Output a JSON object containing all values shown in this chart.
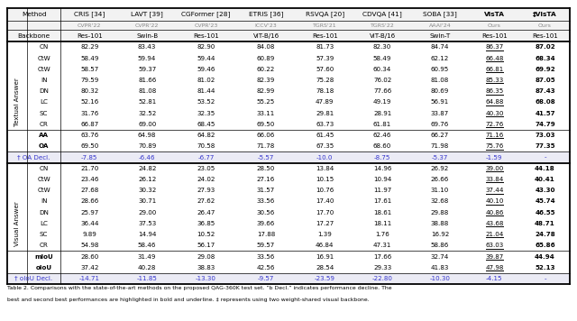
{
  "title": "Table 2. Comparisons with the state-of-the-art methods on the proposed QAG-360K test set. ”b Decl.” indicates performance decline. The best and second best performances are highlighted in bold and underline. ‡ represents using two weight-shared visual backbone.",
  "methods": [
    "CRIS [34]",
    "LAVT [39]",
    "CGFormer [28]",
    "ETRIS [36]",
    "RSVQA [20]",
    "CDVQA [41]",
    "SOBA [33]",
    "VisTA",
    "‡VisTA"
  ],
  "venues": [
    "CVPR'22",
    "CVPR'22",
    "CVPR'23",
    "ICCV'23",
    "TGRS'21",
    "TGRS'22",
    "AAAI'24",
    "Ours",
    "Ours"
  ],
  "backbones": [
    "Res-101",
    "Swin-B",
    "Res-101",
    "ViT-B/16",
    "Res-101",
    "ViT-B/16",
    "Swin-T",
    "Res-101",
    "Res-101"
  ],
  "textual_rows": [
    "CN",
    "CtW",
    "CtW",
    "IN",
    "DN",
    "LC",
    "SC",
    "CR"
  ],
  "textual_data": [
    [
      82.29,
      83.43,
      82.9,
      84.08,
      81.73,
      82.3,
      84.74,
      86.37,
      87.02
    ],
    [
      58.49,
      59.94,
      59.44,
      60.89,
      57.39,
      58.49,
      62.12,
      66.48,
      68.34
    ],
    [
      58.57,
      59.37,
      59.46,
      60.22,
      57.6,
      60.34,
      60.95,
      66.81,
      69.92
    ],
    [
      79.59,
      81.66,
      81.02,
      82.39,
      75.28,
      76.02,
      81.08,
      85.33,
      87.05
    ],
    [
      80.32,
      81.08,
      81.44,
      82.99,
      78.18,
      77.66,
      80.69,
      86.35,
      87.43
    ],
    [
      52.16,
      52.81,
      53.52,
      55.25,
      47.89,
      49.19,
      56.91,
      64.88,
      68.08
    ],
    [
      31.76,
      32.52,
      32.35,
      33.11,
      29.81,
      28.91,
      33.87,
      40.3,
      41.57
    ],
    [
      66.87,
      69.0,
      68.45,
      69.5,
      63.73,
      61.81,
      69.76,
      72.76,
      74.79
    ]
  ],
  "textual_summary_rows": [
    "AA",
    "OA"
  ],
  "textual_summary_data": [
    [
      63.76,
      64.98,
      64.82,
      66.06,
      61.45,
      62.46,
      66.27,
      71.16,
      73.03
    ],
    [
      69.5,
      70.89,
      70.58,
      71.78,
      67.35,
      68.6,
      71.98,
      75.76,
      77.35
    ]
  ],
  "oa_decl": [
    "-7.85",
    "-6.46",
    "-6.77",
    "-5.57",
    "-10.0",
    "-8.75",
    "-5.37",
    "-1.59",
    "-"
  ],
  "visual_rows": [
    "CN",
    "CtW",
    "CtW",
    "IN",
    "DN",
    "LC",
    "SC",
    "CR"
  ],
  "visual_data": [
    [
      21.7,
      24.82,
      23.05,
      28.5,
      13.84,
      14.96,
      26.92,
      39.0,
      44.18
    ],
    [
      23.46,
      26.12,
      24.02,
      27.16,
      10.15,
      10.94,
      26.66,
      33.84,
      40.41
    ],
    [
      27.68,
      30.32,
      27.93,
      31.57,
      10.76,
      11.97,
      31.1,
      37.44,
      43.3
    ],
    [
      28.66,
      30.71,
      27.62,
      33.56,
      17.4,
      17.61,
      32.68,
      40.1,
      45.74
    ],
    [
      25.97,
      29.0,
      26.47,
      30.56,
      17.7,
      18.61,
      29.88,
      40.86,
      46.55
    ],
    [
      36.44,
      37.53,
      36.85,
      39.66,
      17.27,
      18.11,
      38.88,
      43.68,
      48.71
    ],
    [
      9.89,
      14.94,
      10.52,
      17.88,
      1.39,
      1.76,
      16.92,
      21.04,
      24.78
    ],
    [
      54.98,
      58.46,
      56.17,
      59.57,
      46.84,
      47.31,
      58.86,
      63.03,
      65.86
    ]
  ],
  "visual_summary_rows": [
    "mIoU",
    "oIoU"
  ],
  "visual_summary_data": [
    [
      28.6,
      31.49,
      29.08,
      33.56,
      16.91,
      17.66,
      32.74,
      39.87,
      44.94
    ],
    [
      37.42,
      40.28,
      38.83,
      42.56,
      28.54,
      29.33,
      41.83,
      47.98,
      52.13
    ]
  ],
  "oiou_decl": [
    "-14.71",
    "-11.85",
    "-13.30",
    "-9.57",
    "-23.59",
    "-22.80",
    "-10.30",
    "-4.15",
    "-"
  ],
  "blue_color": "#3333cc",
  "caption_line1": "Table 2. Comparisons with the state-of-the-art methods on the proposed QAG-360K test set. ”b Decl.” indicates performance decline. The",
  "caption_line2": "best and second best performances are highlighted in bold and underline. ‡ represents using two weight-shared visual backbone."
}
